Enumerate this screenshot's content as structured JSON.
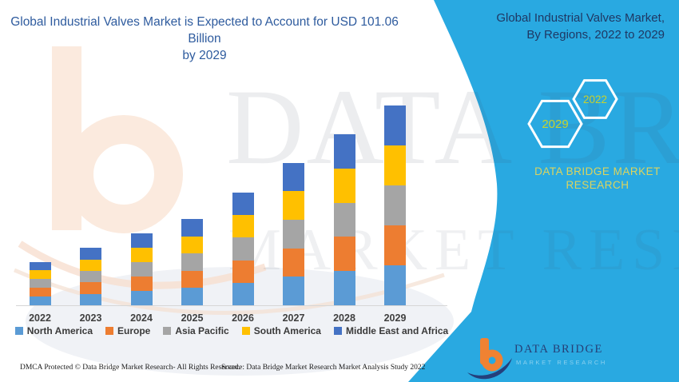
{
  "header": {
    "title_line1": "Global Industrial Valves Market is Expected to Account for USD 101.06 Billion",
    "title_line2": "by 2029"
  },
  "side_panel": {
    "title_line1": "Global Industrial Valves Market,",
    "title_line2": "By Regions, 2022 to 2029",
    "hexagon_back_label": "2029",
    "hexagon_front_label": "2022",
    "brand_line1": "DATA BRIDGE MARKET",
    "brand_line2": "RESEARCH",
    "background_color": "#29a9e1",
    "title_color": "#1f3864",
    "brand_text_color": "#dcd45e",
    "hexagon_label_color": "#c6d22e"
  },
  "watermark": {
    "line1": "DATA BRIDGE",
    "line2": "MARKET RESEARCH"
  },
  "footer": {
    "dmca": "DMCA Protected © Data Bridge Market Research- All Rights Reserved.",
    "source": "Source: Data Bridge Market Research Market Analysis Study 2022"
  },
  "logo": {
    "brand": "DATA BRIDGE",
    "subtitle": "MARKET RESEARCH"
  },
  "chart_data": {
    "type": "bar",
    "stacked": true,
    "title": "Global Industrial Valves Market, By Regions, 2022 to 2029",
    "unit": "USD Billion",
    "categories": [
      "2022",
      "2023",
      "2024",
      "2025",
      "2026",
      "2027",
      "2028",
      "2029"
    ],
    "series": [
      {
        "name": "North America",
        "color": "#5B9BD5",
        "values": [
          4.4,
          5.8,
          7.3,
          8.7,
          11.4,
          14.4,
          17.3,
          20.2
        ]
      },
      {
        "name": "Europe",
        "color": "#ED7D31",
        "values": [
          4.4,
          5.8,
          7.3,
          8.7,
          11.4,
          14.4,
          17.3,
          20.2
        ]
      },
      {
        "name": "Asia Pacific",
        "color": "#A5A5A5",
        "values": [
          4.4,
          5.8,
          7.3,
          8.7,
          11.4,
          14.4,
          17.3,
          20.2
        ]
      },
      {
        "name": "South America",
        "color": "#FFC000",
        "values": [
          4.4,
          5.8,
          7.3,
          8.7,
          11.4,
          14.4,
          17.3,
          20.2
        ]
      },
      {
        "name": "Middle East and Africa",
        "color": "#4472C4",
        "values": [
          4.4,
          5.8,
          7.3,
          8.7,
          11.4,
          14.4,
          17.3,
          20.2
        ]
      }
    ],
    "totals_estimated": [
      22.0,
      29.0,
      36.5,
      43.5,
      57.0,
      72.0,
      86.5,
      101.06
    ],
    "xlabel": "",
    "ylabel": "",
    "ylim": [
      0,
      105
    ],
    "grid": false,
    "y_axis_visible": false,
    "legend_position": "bottom"
  }
}
